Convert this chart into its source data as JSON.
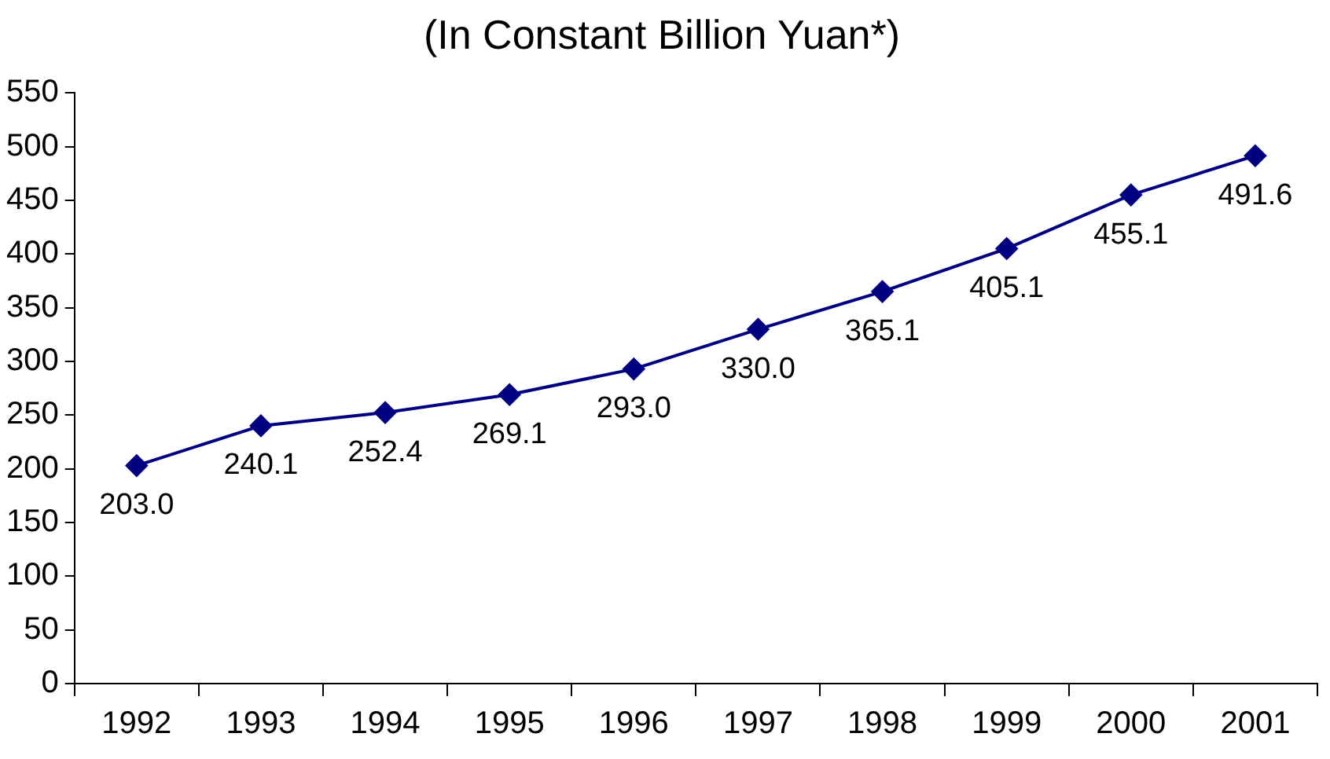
{
  "chart_data": {
    "type": "line",
    "title": "(In Constant Billion Yuan*)",
    "categories": [
      "1992",
      "1993",
      "1994",
      "1995",
      "1996",
      "1997",
      "1998",
      "1999",
      "2000",
      "2001"
    ],
    "series": [
      {
        "color": "#000080",
        "values": [
          203.0,
          240.1,
          252.4,
          269.1,
          293.0,
          330.0,
          365.1,
          405.1,
          455.1,
          491.6
        ],
        "value_labels": [
          "203.0",
          "240.1",
          "252.4",
          "269.1",
          "293.0",
          "330.0",
          "365.1",
          "405.1",
          "455.1",
          "491.6"
        ]
      }
    ],
    "ylim": [
      0,
      550
    ],
    "yticks": [
      0,
      50,
      100,
      150,
      200,
      250,
      300,
      350,
      400,
      450,
      500,
      550
    ],
    "grid": false,
    "legend": false,
    "marker": "diamond",
    "line_style": "solid"
  }
}
